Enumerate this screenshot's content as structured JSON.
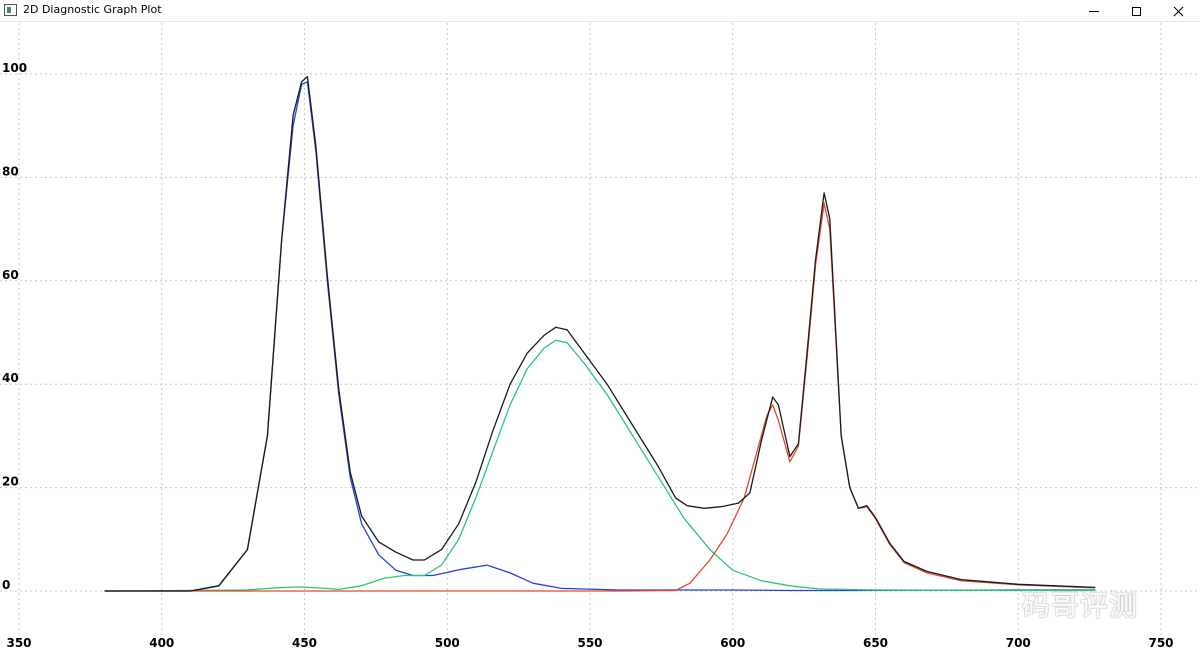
{
  "window": {
    "title": "2D Diagnostic Graph Plot",
    "icon": "app-icon",
    "controls": [
      {
        "name": "minimize",
        "icon": "minimize-icon"
      },
      {
        "name": "maximize",
        "icon": "maximize-icon"
      },
      {
        "name": "close",
        "icon": "close-icon"
      }
    ]
  },
  "watermark": "码哥评测",
  "chart_data": {
    "type": "line",
    "xlim": [
      350,
      750
    ],
    "ylim": [
      0,
      100
    ],
    "x_ticks": [
      350,
      400,
      450,
      500,
      550,
      600,
      650,
      700,
      750
    ],
    "y_ticks": [
      0,
      20,
      40,
      60,
      80,
      100
    ],
    "grid": true,
    "series": [
      {
        "color": "#2840d8",
        "points": [
          [
            380,
            0
          ],
          [
            410,
            0
          ],
          [
            420,
            1
          ],
          [
            430,
            8
          ],
          [
            437,
            30
          ],
          [
            442,
            68
          ],
          [
            446,
            90
          ],
          [
            449,
            98
          ],
          [
            451,
            98.5
          ],
          [
            454,
            85
          ],
          [
            458,
            60
          ],
          [
            462,
            38
          ],
          [
            466,
            22
          ],
          [
            470,
            13
          ],
          [
            476,
            7
          ],
          [
            482,
            4
          ],
          [
            488,
            3
          ],
          [
            495,
            3
          ],
          [
            505,
            4.2
          ],
          [
            514,
            5
          ],
          [
            522,
            3.5
          ],
          [
            530,
            1.5
          ],
          [
            540,
            0.5
          ],
          [
            560,
            0.2
          ],
          [
            600,
            0.2
          ],
          [
            620,
            0.1
          ],
          [
            640,
            0.1
          ],
          [
            700,
            0.2
          ],
          [
            727,
            0.2
          ]
        ]
      },
      {
        "color": "#2ec47a",
        "points": [
          [
            380,
            0
          ],
          [
            430,
            0.2
          ],
          [
            440,
            0.6
          ],
          [
            448,
            0.8
          ],
          [
            455,
            0.6
          ],
          [
            462,
            0.3
          ],
          [
            470,
            1
          ],
          [
            478,
            2.5
          ],
          [
            485,
            3
          ],
          [
            492,
            3
          ],
          [
            498,
            5
          ],
          [
            504,
            10
          ],
          [
            510,
            18
          ],
          [
            516,
            27
          ],
          [
            522,
            36
          ],
          [
            528,
            43
          ],
          [
            534,
            47
          ],
          [
            538,
            48.5
          ],
          [
            542,
            48
          ],
          [
            548,
            44
          ],
          [
            556,
            38
          ],
          [
            565,
            30
          ],
          [
            574,
            22
          ],
          [
            583,
            14
          ],
          [
            592,
            8
          ],
          [
            600,
            4
          ],
          [
            610,
            2
          ],
          [
            620,
            1
          ],
          [
            630,
            0.4
          ],
          [
            650,
            0.2
          ],
          [
            700,
            0.1
          ],
          [
            727,
            0.1
          ]
        ]
      },
      {
        "color": "#e04a2c",
        "points": [
          [
            380,
            0
          ],
          [
            560,
            0
          ],
          [
            580,
            0.1
          ],
          [
            585,
            1.5
          ],
          [
            592,
            6
          ],
          [
            598,
            11
          ],
          [
            604,
            18
          ],
          [
            608,
            26
          ],
          [
            612,
            34
          ],
          [
            614,
            36
          ],
          [
            616,
            33
          ],
          [
            620,
            25
          ],
          [
            623,
            28
          ],
          [
            626,
            45
          ],
          [
            629,
            63
          ],
          [
            632,
            75
          ],
          [
            634,
            70
          ],
          [
            638,
            30
          ],
          [
            641,
            20
          ],
          [
            644,
            16
          ],
          [
            647,
            16.3
          ],
          [
            650,
            14
          ],
          [
            655,
            9
          ],
          [
            660,
            5.5
          ],
          [
            668,
            3.5
          ],
          [
            680,
            2
          ],
          [
            700,
            1.2
          ],
          [
            727,
            0.6
          ]
        ]
      },
      {
        "color": "#1a1a1a",
        "points": [
          [
            380,
            0
          ],
          [
            410,
            0
          ],
          [
            420,
            1
          ],
          [
            430,
            8
          ],
          [
            437,
            30
          ],
          [
            442,
            68
          ],
          [
            446,
            92
          ],
          [
            449,
            98.5
          ],
          [
            451,
            99.5
          ],
          [
            454,
            86
          ],
          [
            458,
            61
          ],
          [
            462,
            39
          ],
          [
            466,
            23
          ],
          [
            470,
            14.5
          ],
          [
            476,
            9.5
          ],
          [
            482,
            7.5
          ],
          [
            488,
            6
          ],
          [
            492,
            6
          ],
          [
            498,
            8
          ],
          [
            504,
            13
          ],
          [
            510,
            21
          ],
          [
            516,
            31
          ],
          [
            522,
            40
          ],
          [
            528,
            46
          ],
          [
            534,
            49.5
          ],
          [
            538,
            51
          ],
          [
            542,
            50.5
          ],
          [
            548,
            46
          ],
          [
            556,
            40
          ],
          [
            565,
            32
          ],
          [
            574,
            24
          ],
          [
            580,
            18
          ],
          [
            584,
            16.5
          ],
          [
            590,
            16
          ],
          [
            596,
            16.3
          ],
          [
            602,
            17
          ],
          [
            606,
            19
          ],
          [
            610,
            29
          ],
          [
            614,
            37.5
          ],
          [
            616,
            36
          ],
          [
            620,
            26
          ],
          [
            623,
            28.5
          ],
          [
            626,
            46
          ],
          [
            629,
            64
          ],
          [
            632,
            77
          ],
          [
            634,
            72
          ],
          [
            638,
            30
          ],
          [
            641,
            20
          ],
          [
            644,
            16
          ],
          [
            647,
            16.5
          ],
          [
            650,
            14.2
          ],
          [
            655,
            9.2
          ],
          [
            660,
            5.7
          ],
          [
            668,
            3.8
          ],
          [
            680,
            2.2
          ],
          [
            700,
            1.3
          ],
          [
            727,
            0.7
          ]
        ]
      }
    ]
  }
}
